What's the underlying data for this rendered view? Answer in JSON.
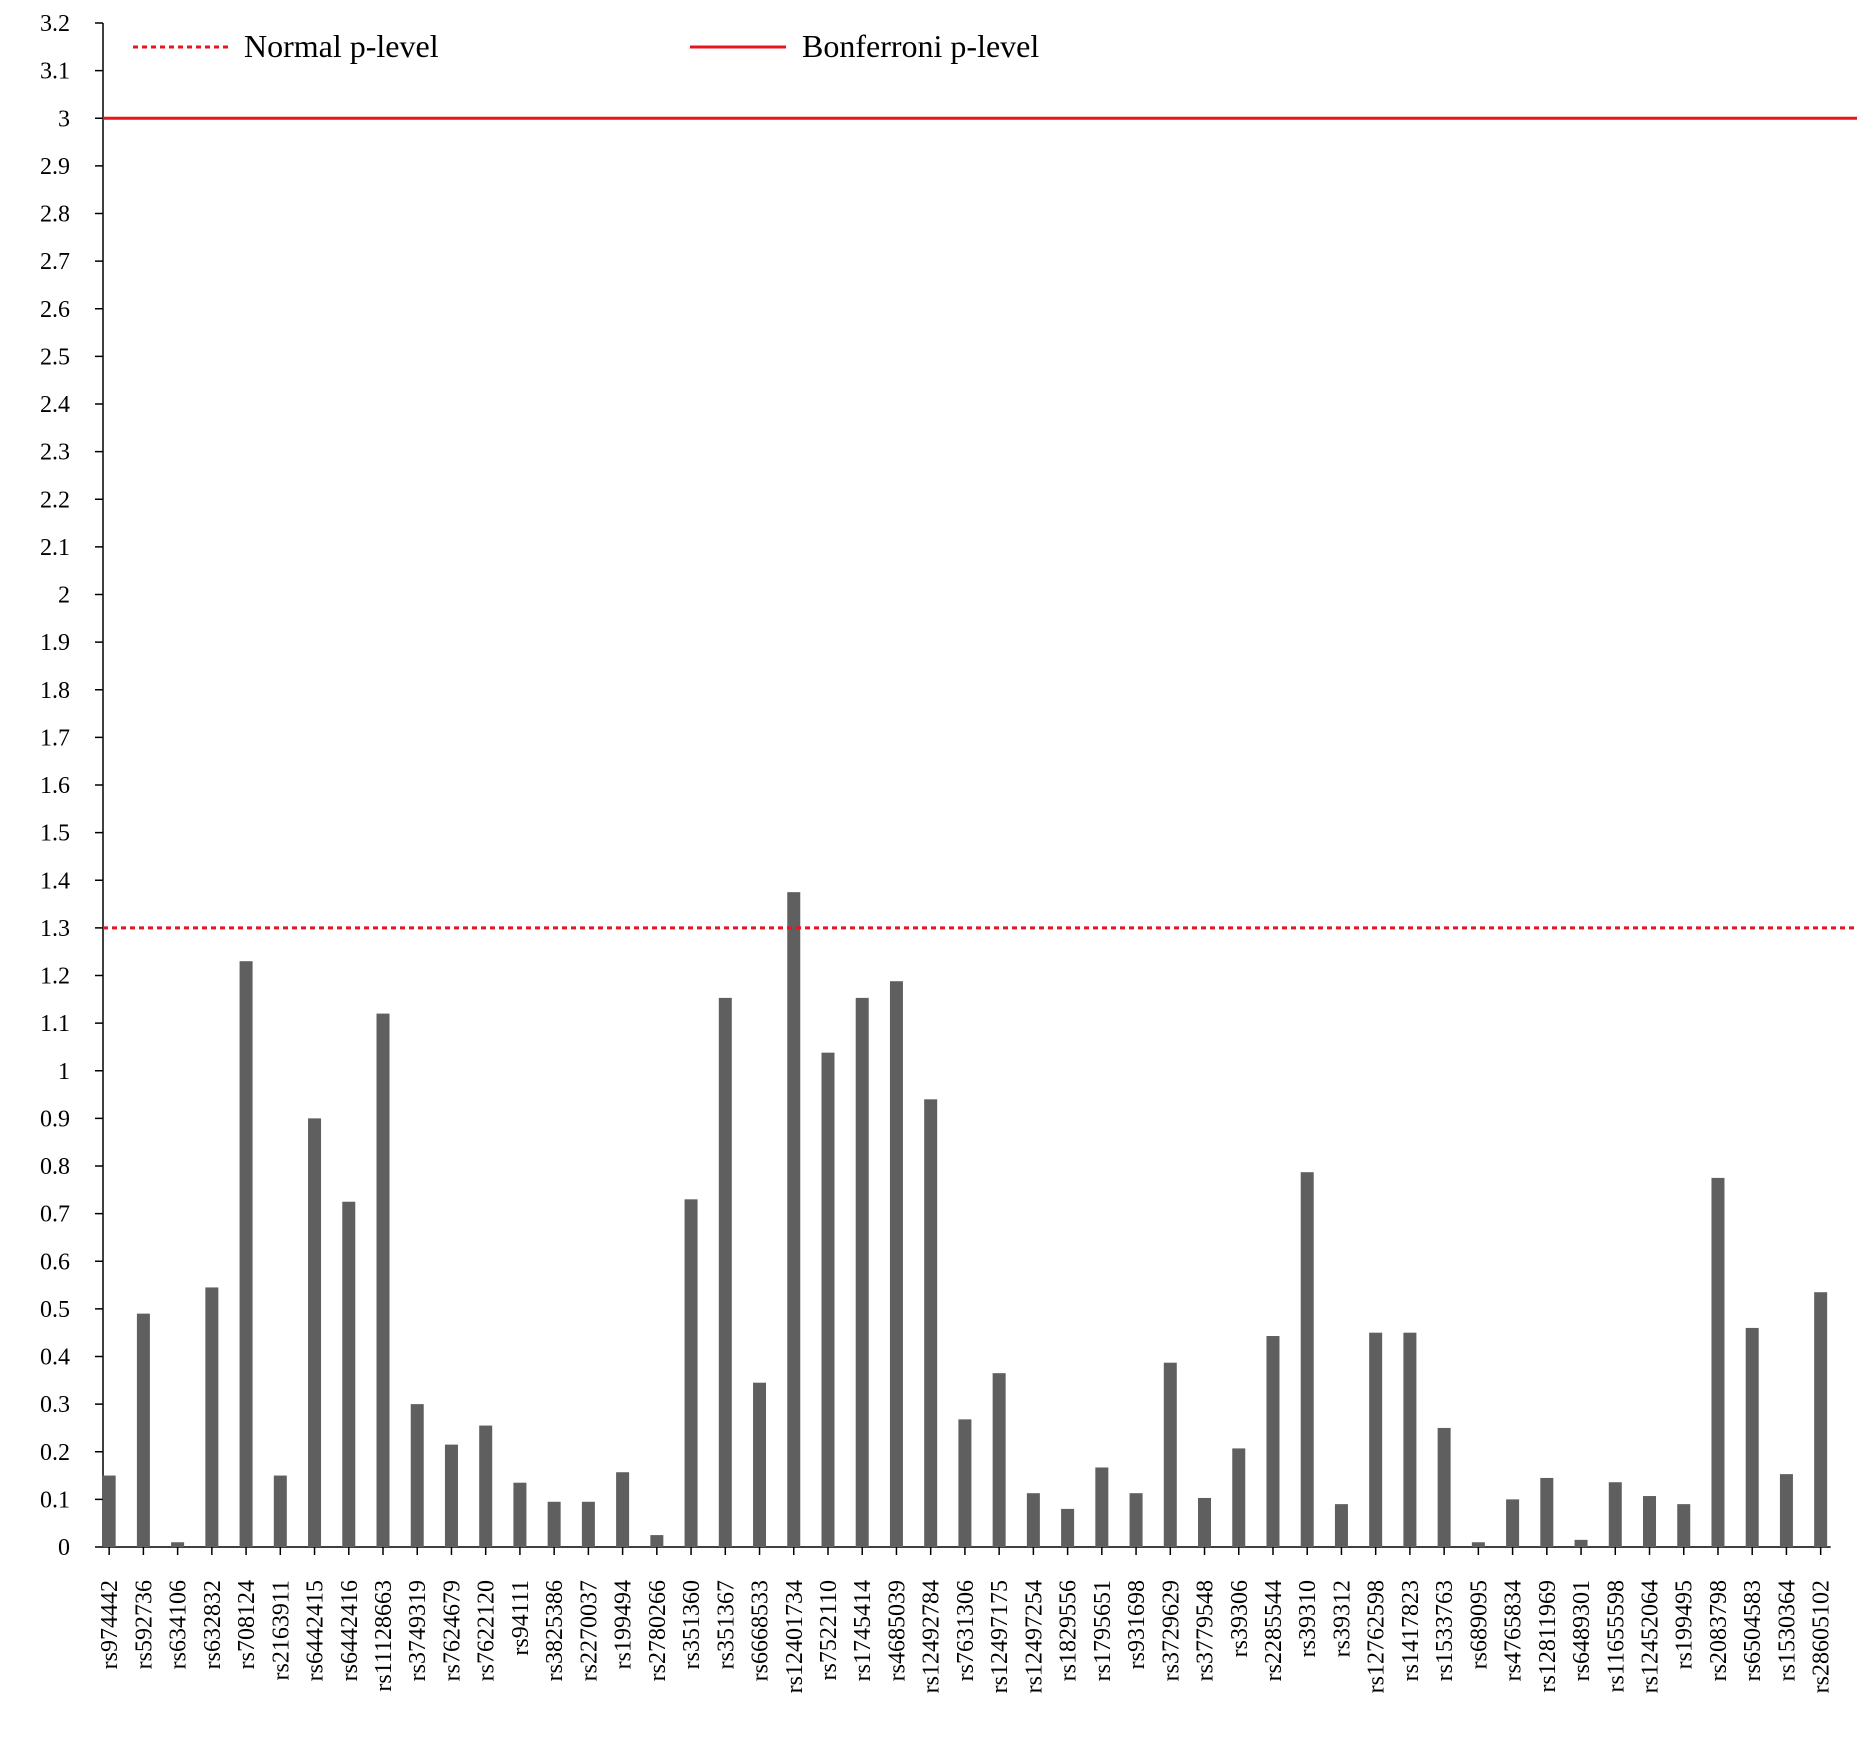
{
  "chart_data": {
    "type": "bar",
    "title": "",
    "xlabel": "",
    "ylabel": "",
    "ylim": [
      0,
      3.2
    ],
    "yticks": [
      "0",
      "0.1",
      "0.2",
      "0.3",
      "0.4",
      "0.5",
      "0.6",
      "0.7",
      "0.8",
      "0.9",
      "1",
      "1.1",
      "1.2",
      "1.3",
      "1.4",
      "1.5",
      "1.6",
      "1.7",
      "1.8",
      "1.9",
      "2",
      "2.1",
      "2.2",
      "2.3",
      "2.4",
      "2.5",
      "2.6",
      "2.7",
      "2.8",
      "2.9",
      "3",
      "3.1",
      "3.2"
    ],
    "grid": false,
    "bar_color": "#5f5f5f",
    "categories": [
      "rs974442",
      "rs592736",
      "rs634106",
      "rs632832",
      "rs708124",
      "rs2163911",
      "rs6442415",
      "rs6442416",
      "rs11128663",
      "rs3749319",
      "rs7624679",
      "rs7622120",
      "rs94111",
      "rs3825386",
      "rs2270037",
      "rs199494",
      "rs2780266",
      "rs351360",
      "rs351367",
      "rs6668533",
      "rs12401734",
      "rs7522110",
      "rs1745414",
      "rs4685039",
      "rs12492784",
      "rs7631306",
      "rs12497175",
      "rs12497254",
      "rs1829556",
      "rs1795651",
      "rs931698",
      "rs3729629",
      "rs3779548",
      "rs39306",
      "rs2285544",
      "rs39310",
      "rs39312",
      "rs12762598",
      "rs1417823",
      "rs1533763",
      "rs689095",
      "rs4765834",
      "rs12811969",
      "rs6489301",
      "rs11655598",
      "rs12452064",
      "rs199495",
      "rs2083798",
      "rs6504583",
      "rs1530364",
      "rs28605102"
    ],
    "values": [
      0.15,
      0.49,
      0.01,
      0.545,
      1.23,
      0.15,
      0.9,
      0.725,
      1.12,
      0.3,
      0.215,
      0.255,
      0.135,
      0.095,
      0.095,
      0.157,
      0.025,
      0.73,
      1.153,
      0.345,
      1.375,
      1.038,
      1.153,
      1.188,
      0.94,
      0.268,
      0.365,
      0.113,
      0.08,
      0.167,
      0.113,
      0.387,
      0.103,
      0.207,
      0.443,
      0.787,
      0.09,
      0.45,
      0.45,
      0.25,
      0.01,
      0.1,
      0.145,
      0.015,
      0.136,
      0.107,
      0.09,
      0.775,
      0.46,
      0.153,
      0.535
    ],
    "reference_lines": [
      {
        "name": "Normal p-level",
        "value": 1.3,
        "style": "dotted",
        "color": "#e8141e"
      },
      {
        "name": "Bonferroni p-level",
        "value": 3.0,
        "style": "solid",
        "color": "#e8141e"
      }
    ],
    "legend": {
      "placement": "top"
    }
  }
}
